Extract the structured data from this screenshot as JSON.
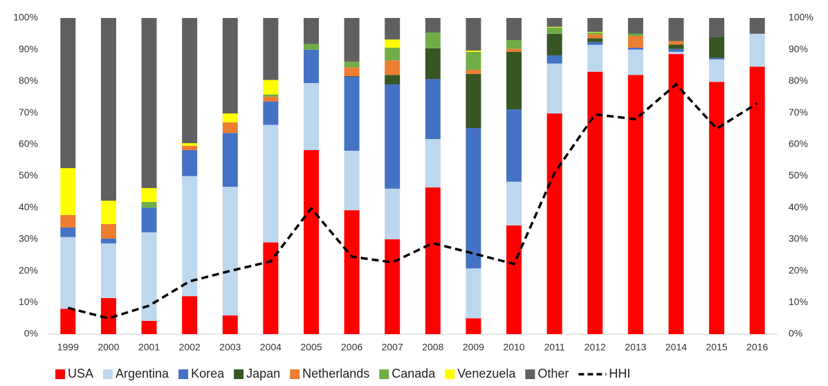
{
  "chart_data": {
    "type": "stacked-bar-line",
    "categories": [
      "1999",
      "2000",
      "2001",
      "2002",
      "2003",
      "2004",
      "2005",
      "2006",
      "2007",
      "2008",
      "2009",
      "2010",
      "2011",
      "2012",
      "2013",
      "2014",
      "2015",
      "2016"
    ],
    "series": [
      {
        "name": "USA",
        "color": "#ff0000",
        "values": [
          8,
          11.4,
          4.2,
          12,
          5.9,
          29,
          58.2,
          39.2,
          30,
          46.4,
          5,
          34.4,
          69.8,
          83,
          82,
          88.6,
          79.8,
          84.6
        ]
      },
      {
        "name": "Argentina",
        "color": "#bdd7ee",
        "values": [
          22.7,
          17.3,
          28,
          38,
          40.7,
          37.2,
          21.2,
          18.8,
          16,
          15.3,
          15.8,
          13.8,
          15.8,
          8.5,
          8,
          0.7,
          7.1,
          10.4
        ]
      },
      {
        "name": "Korea",
        "color": "#4472c4",
        "values": [
          3,
          1.5,
          7.8,
          8.2,
          17,
          7.4,
          10.6,
          23.4,
          33,
          19,
          44.4,
          22.9,
          2.6,
          0.9,
          0.6,
          0.9,
          0.5,
          0
        ]
      },
      {
        "name": "Japan",
        "color": "#375623",
        "values": [
          0,
          0,
          0,
          0,
          0,
          0,
          0,
          0.2,
          3,
          9.7,
          17.1,
          18.2,
          6.8,
          1.2,
          0,
          1.4,
          6.6,
          0
        ]
      },
      {
        "name": "Netherlands",
        "color": "#ed7d31",
        "values": [
          4,
          4.6,
          0,
          1.4,
          3.4,
          1.5,
          0,
          2.8,
          4.6,
          0,
          1.3,
          0.9,
          0,
          1.2,
          3.7,
          1.1,
          0,
          0
        ]
      },
      {
        "name": "Canada",
        "color": "#70ad47",
        "values": [
          0,
          0,
          1.8,
          0,
          0,
          0.7,
          1.8,
          1.8,
          4,
          5,
          5.7,
          2.8,
          2,
          0.6,
          0.7,
          0,
          0,
          0
        ]
      },
      {
        "name": "Venezuela",
        "color": "#ffff00",
        "values": [
          14.8,
          7.4,
          4.4,
          0.8,
          2.8,
          4.6,
          0,
          0,
          2.6,
          0,
          0.4,
          0,
          0.2,
          0.2,
          0,
          0,
          0,
          0
        ]
      },
      {
        "name": "Other",
        "color": "#606060",
        "values": [
          47.5,
          57.8,
          53.8,
          39.6,
          30.2,
          19.6,
          8.2,
          13.8,
          6.8,
          4.6,
          10.3,
          7,
          2.8,
          4.4,
          5,
          7.3,
          6,
          5
        ]
      },
      {
        "name": "HHI",
        "color": "#000000",
        "axis": "y2",
        "line_style": "dashed",
        "values": [
          8.3,
          5,
          9,
          16.7,
          20,
          23,
          39.8,
          24.5,
          22.7,
          28.8,
          25.5,
          22.2,
          51,
          69.5,
          68,
          79,
          65,
          73
        ]
      }
    ],
    "ylim": [
      0,
      100
    ],
    "yticks": [
      {
        "value": 0,
        "label": "0%"
      },
      {
        "value": 10,
        "label": "10%"
      },
      {
        "value": 20,
        "label": "20%"
      },
      {
        "value": 30,
        "label": "30%"
      },
      {
        "value": 40,
        "label": "40%"
      },
      {
        "value": 50,
        "label": "50%"
      },
      {
        "value": 60,
        "label": "60%"
      },
      {
        "value": 70,
        "label": "70%"
      },
      {
        "value": 80,
        "label": "80%"
      },
      {
        "value": 90,
        "label": "90%"
      },
      {
        "value": 100,
        "label": "100%"
      }
    ],
    "y2lim": [
      0,
      100
    ],
    "y2ticks": [
      {
        "value": 0,
        "label": "0%"
      },
      {
        "value": 10,
        "label": "10%"
      },
      {
        "value": 20,
        "label": "20%"
      },
      {
        "value": 30,
        "label": "30%"
      },
      {
        "value": 40,
        "label": "40%"
      },
      {
        "value": 50,
        "label": "50%"
      },
      {
        "value": 60,
        "label": "60%"
      },
      {
        "value": 70,
        "label": "70%"
      },
      {
        "value": 80,
        "label": "80%"
      },
      {
        "value": 90,
        "label": "90%"
      },
      {
        "value": 100,
        "label": "100%"
      }
    ],
    "grid": false,
    "legend": "bottom"
  }
}
